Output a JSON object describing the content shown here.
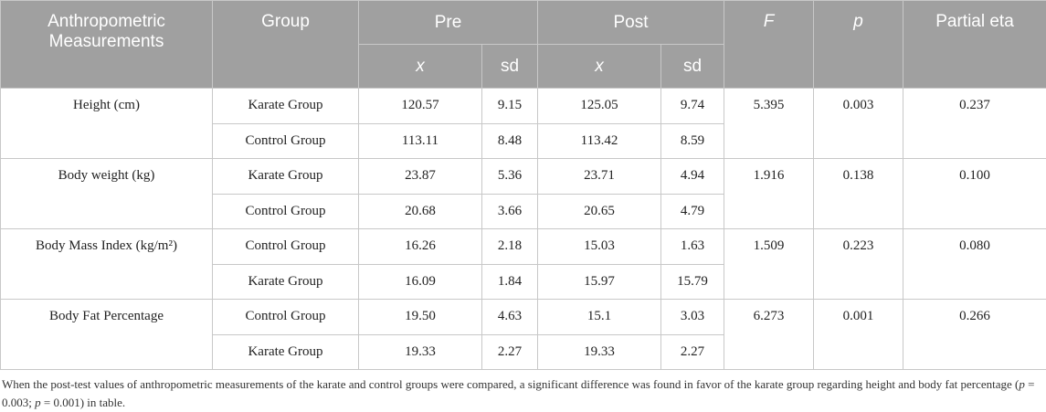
{
  "header": {
    "measurements": "Anthropometric Measurements",
    "group": "Group",
    "pre": "Pre",
    "post": "Post",
    "f": "F",
    "p": "p",
    "eta": "Partial eta",
    "sub": [
      "x",
      "sd",
      "x",
      "sd"
    ]
  },
  "rows": [
    {
      "label": "Height (cm)",
      "groups": [
        [
          "Karate Group",
          "120.57",
          "9.15",
          "125.05",
          "9.74"
        ],
        [
          "Control Group",
          "113.11",
          "8.48",
          "113.42",
          "8.59"
        ]
      ],
      "f": "5.395",
      "p": "0.003",
      "eta": "0.237"
    },
    {
      "label": "Body weight (kg)",
      "groups": [
        [
          "Karate Group",
          "23.87",
          "5.36",
          "23.71",
          "4.94"
        ],
        [
          "Control Group",
          "20.68",
          "3.66",
          "20.65",
          "4.79"
        ]
      ],
      "f": "1.916",
      "p": "0.138",
      "eta": "0.100"
    },
    {
      "label": "Body Mass Index (kg/m²)",
      "groups": [
        [
          "Control Group",
          "16.26",
          "2.18",
          "15.03",
          "1.63"
        ],
        [
          "Karate Group",
          "16.09",
          "1.84",
          "15.97",
          "15.79"
        ]
      ],
      "f": "1.509",
      "p": "0.223",
      "eta": "0.080"
    },
    {
      "label": "Body Fat Percentage",
      "groups": [
        [
          "Control Group",
          "19.50",
          "4.63",
          "15.1",
          "3.03"
        ],
        [
          "Karate Group",
          "19.33",
          "2.27",
          "19.33",
          "2.27"
        ]
      ],
      "f": "6.273",
      "p": "0.001",
      "eta": "0.266"
    }
  ],
  "footnote": [
    "When the post-test values of anthropometric measurements of the karate and control groups were compared, a significant difference was found in favor of the karate group regarding height and body fat percentage (",
    "p",
    " = 0.003; ",
    "p",
    " = 0.001) in table."
  ]
}
